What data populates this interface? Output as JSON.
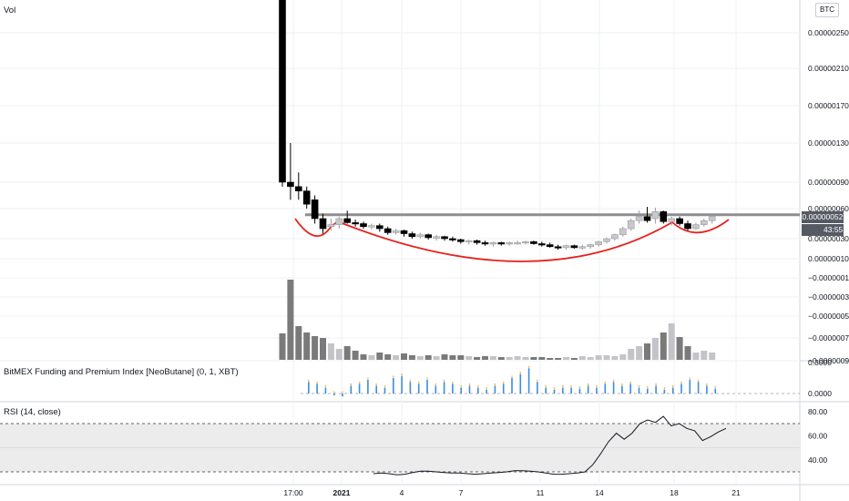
{
  "main_pane": {
    "vol_label": "Vol",
    "currency_button": "BTC",
    "current_price": "0.00000052",
    "countdown": "43:55",
    "price_ticks": [
      "0.00000250",
      "0.00000210",
      "0.00000170",
      "0.00000130",
      "0.00000090",
      "0.00000060",
      "0.00000030",
      "0.00000010",
      "−0.00000010",
      "−0.00000030",
      "−0.00000050",
      "−0.00000075",
      "−0.00000097"
    ]
  },
  "bitmex_pane": {
    "title": "BitMEX Funding and Premium Index [NeoButane] (0, 1, XBT)",
    "ticks": [
      "0.3000",
      "0.0000"
    ]
  },
  "rsi_pane": {
    "title": "RSI (14, close)",
    "ticks": [
      "80.00",
      "60.00",
      "40.00"
    ]
  },
  "time_axis": {
    "labels": [
      "17:00",
      "2021",
      "4",
      "7",
      "11",
      "14",
      "18",
      "21"
    ]
  },
  "colors": {
    "up_candle": "#c8c8cc",
    "down_candle": "#000000",
    "volume_dark": "#7a7a7a",
    "volume_light": "#c4c4c8",
    "cup_curve": "#e5231d",
    "resistance_line": "#8e8e8e",
    "rsi_line": "#131722",
    "rsi_band": "#ececec",
    "funding_bar": "#3b8ed8",
    "premium_bar": "#f5b341"
  },
  "chart_data": [
    {
      "type": "candlestick",
      "series": "price",
      "ohlc": [
        [
          3e-06,
          3e-06,
          8.5e-07,
          9e-07
        ],
        [
          9e-07,
          1.3e-06,
          7e-07,
          8.5e-07
        ],
        [
          8.5e-07,
          1e-06,
          7e-07,
          8e-07
        ],
        [
          8e-07,
          8.5e-07,
          6e-07,
          6.5e-07
        ],
        [
          7e-07,
          7.5e-07,
          4.5e-07,
          5e-07
        ],
        [
          5e-07,
          5.5e-07,
          3.5e-07,
          4e-07
        ],
        [
          4.2e-07,
          5e-07,
          3.8e-07,
          4.4e-07
        ],
        [
          4.4e-07,
          5.2e-07,
          4e-07,
          5e-07
        ],
        [
          5e-07,
          5.8e-07,
          4.5e-07,
          4.6e-07
        ],
        [
          4.6e-07,
          4.9e-07,
          4.2e-07,
          4.5e-07
        ],
        [
          4.5e-07,
          4.7e-07,
          4e-07,
          4.2e-07
        ],
        [
          4.2e-07,
          4.5e-07,
          3.9e-07,
          4.3e-07
        ],
        [
          4.3e-07,
          4.5e-07,
          3.7e-07,
          4e-07
        ],
        [
          4e-07,
          4.2e-07,
          3.4e-07,
          3.6e-07
        ],
        [
          3.6e-07,
          4e-07,
          3.4e-07,
          3.8e-07
        ],
        [
          3.8e-07,
          3.9e-07,
          3.2e-07,
          3.5e-07
        ],
        [
          3.5e-07,
          3.7e-07,
          3e-07,
          3.2e-07
        ],
        [
          3.2e-07,
          3.6e-07,
          3e-07,
          3.4e-07
        ],
        [
          3.4e-07,
          3.5e-07,
          2.9e-07,
          3.1e-07
        ],
        [
          3.1e-07,
          3.4e-07,
          2.8e-07,
          3.2e-07
        ],
        [
          3.2e-07,
          3.3e-07,
          2.8e-07,
          3e-07
        ],
        [
          3e-07,
          3.2e-07,
          2.7e-07,
          2.9e-07
        ],
        [
          2.9e-07,
          3e-07,
          2.5e-07,
          2.7e-07
        ],
        [
          2.7e-07,
          2.9e-07,
          2.4e-07,
          2.8e-07
        ],
        [
          2.8e-07,
          2.9e-07,
          2.4e-07,
          2.6e-07
        ],
        [
          2.6e-07,
          2.8e-07,
          2.3e-07,
          2.5e-07
        ],
        [
          2.5e-07,
          2.7e-07,
          2.2e-07,
          2.6e-07
        ],
        [
          2.6e-07,
          2.7e-07,
          2.3e-07,
          2.5e-07
        ],
        [
          2.5e-07,
          2.7e-07,
          2.3e-07,
          2.6e-07
        ],
        [
          2.6e-07,
          2.8e-07,
          2.4e-07,
          2.6e-07
        ],
        [
          2.6e-07,
          2.8e-07,
          2.4e-07,
          2.7e-07
        ],
        [
          2.7e-07,
          2.8e-07,
          2.4e-07,
          2.5e-07
        ],
        [
          2.5e-07,
          2.7e-07,
          2.2e-07,
          2.4e-07
        ],
        [
          2.4e-07,
          2.6e-07,
          2.1e-07,
          2.2e-07
        ],
        [
          2.2e-07,
          2.4e-07,
          1.9e-07,
          2.1e-07
        ],
        [
          2.1e-07,
          2.4e-07,
          1.9e-07,
          2.3e-07
        ],
        [
          2.3e-07,
          2.4e-07,
          2e-07,
          2.1e-07
        ],
        [
          2.1e-07,
          2.4e-07,
          1.9e-07,
          2.2e-07
        ],
        [
          2.2e-07,
          2.5e-07,
          2e-07,
          2.4e-07
        ],
        [
          2.4e-07,
          2.8e-07,
          2.2e-07,
          2.7e-07
        ],
        [
          2.7e-07,
          3.1e-07,
          2.5e-07,
          3e-07
        ],
        [
          3e-07,
          3.5e-07,
          2.8e-07,
          3.4e-07
        ],
        [
          3.4e-07,
          4.2e-07,
          3.2e-07,
          4e-07
        ],
        [
          4e-07,
          5e-07,
          3.8e-07,
          4.8e-07
        ],
        [
          4.8e-07,
          5.8e-07,
          4.5e-07,
          5.2e-07
        ],
        [
          5.2e-07,
          6.2e-07,
          4.6e-07,
          4.8e-07
        ],
        [
          5e-07,
          6.1e-07,
          4.5e-07,
          5.7e-07
        ],
        [
          5.7e-07,
          5.8e-07,
          4.5e-07,
          4.7e-07
        ],
        [
          4.7e-07,
          5.2e-07,
          4.3e-07,
          5e-07
        ],
        [
          5e-07,
          5.2e-07,
          4.3e-07,
          4.5e-07
        ],
        [
          4.5e-07,
          4.8e-07,
          3.8e-07,
          4e-07
        ],
        [
          4e-07,
          4.6e-07,
          3.9e-07,
          4.4e-07
        ],
        [
          4.4e-07,
          5e-07,
          4.2e-07,
          4.8e-07
        ],
        [
          4.8e-07,
          5.4e-07,
          4.5e-07,
          5.2e-07
        ]
      ]
    },
    {
      "type": "bar",
      "series": "volume",
      "values": [
        0.29,
        0.88,
        0.37,
        0.3,
        0.26,
        0.24,
        0.18,
        0.12,
        0.15,
        0.1,
        0.06,
        0.05,
        0.08,
        0.06,
        0.05,
        0.07,
        0.05,
        0.04,
        0.05,
        0.04,
        0.06,
        0.05,
        0.05,
        0.04,
        0.03,
        0.04,
        0.04,
        0.03,
        0.03,
        0.04,
        0.03,
        0.03,
        0.03,
        0.02,
        0.02,
        0.03,
        0.02,
        0.04,
        0.03,
        0.05,
        0.05,
        0.04,
        0.06,
        0.12,
        0.15,
        0.18,
        0.24,
        0.3,
        0.4,
        0.25,
        0.15,
        0.08,
        0.1,
        0.08
      ]
    },
    {
      "type": "bar",
      "series": "bitmex_funding_premium",
      "ylim": [
        -0.05,
        0.3
      ],
      "funding": [
        0.12,
        0.1,
        0.06,
        -0.02,
        -0.03,
        0.08,
        0.1,
        0.14,
        0.08,
        0.06,
        0.16,
        0.18,
        0.12,
        0.1,
        0.14,
        0.08,
        0.12,
        0.1,
        0.06,
        0.08,
        0.06,
        0.04,
        0.08,
        0.1,
        0.16,
        0.2,
        0.26,
        0.12,
        0.06,
        0.04,
        0.06,
        0.06,
        0.05,
        0.08,
        0.06,
        0.1,
        0.12,
        0.08,
        0.1,
        0.06,
        0.05,
        0.08,
        0.04,
        0.06,
        0.1,
        0.14,
        0.12,
        0.08,
        0.05
      ],
      "premium": [
        0.02,
        0.02,
        0.01,
        0.01,
        0.01,
        0.02,
        0.02,
        0.03,
        0.02,
        0.02,
        0.03,
        0.03,
        0.02,
        0.02,
        0.03,
        0.02,
        0.02,
        0.02,
        0.02,
        0.02,
        0.02,
        0.01,
        0.02,
        0.02,
        0.03,
        0.03,
        0.04,
        0.02,
        0.02,
        0.01,
        0.02,
        0.02,
        0.02,
        0.02,
        0.02,
        0.02,
        0.03,
        0.02,
        0.02,
        0.02,
        0.02,
        0.02,
        0.01,
        0.02,
        0.02,
        0.03,
        0.02,
        0.02,
        0.02
      ]
    },
    {
      "type": "line",
      "series": "rsi",
      "ylim": [
        20,
        90
      ],
      "upper_band": 70,
      "lower_band": 30,
      "values": [
        28.5,
        29.0,
        28.5,
        27.5,
        28.0,
        29.5,
        30.5,
        30.5,
        30.0,
        29.5,
        29.0,
        29.0,
        28.5,
        28.0,
        28.5,
        29.0,
        29.5,
        30.0,
        31.0,
        31.0,
        30.5,
        30.0,
        29.0,
        28.0,
        28.0,
        28.5,
        29.0,
        30.0,
        36.0,
        45.0,
        55.0,
        62.0,
        57.0,
        62.0,
        70.0,
        73.0,
        71.0,
        76.0,
        68.0,
        70.0,
        66.0,
        64.0,
        56.0,
        59.0,
        63.0,
        66.0
      ]
    }
  ]
}
